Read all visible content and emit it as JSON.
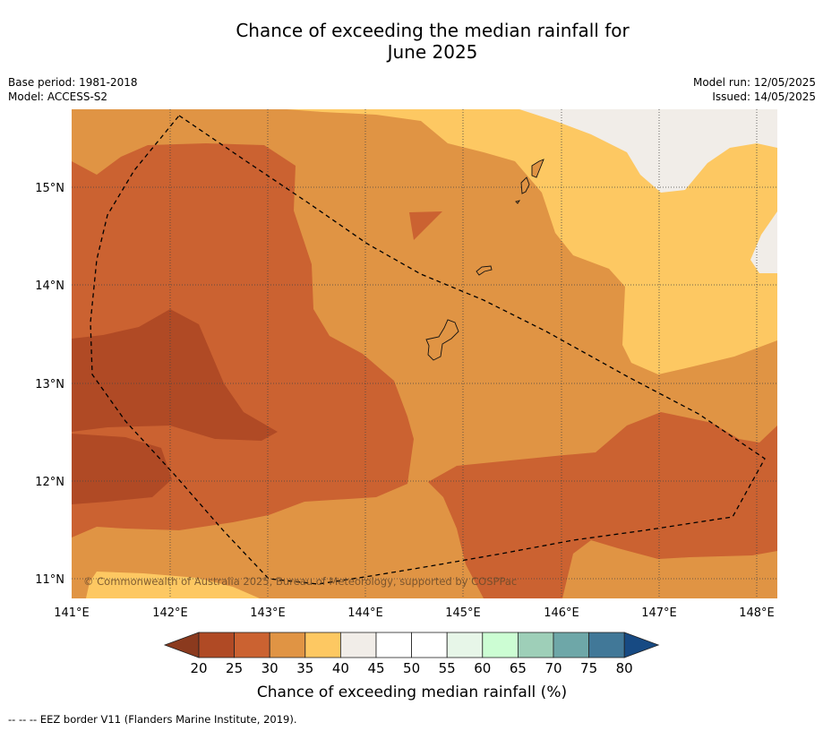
{
  "title": {
    "line1": "Chance of exceeding the median rainfall for",
    "line2": "June 2025"
  },
  "meta": {
    "base_period": "Base period: 1981-2018",
    "model": "Model: ACCESS-S2",
    "model_run": "Model run: 12/05/2025",
    "issued": "Issued: 14/05/2025"
  },
  "map": {
    "lat_labels": [
      "15°N",
      "14°N",
      "13°N",
      "12°N",
      "11°N"
    ],
    "lon_labels": [
      "141°E",
      "142°E",
      "143°E",
      "144°E",
      "145°E",
      "146°E",
      "147°E",
      "148°E"
    ],
    "copyright": "© Commonwealth of Australia 2025, Bureau of Meteorology, supported by COSPPac"
  },
  "colorbar": {
    "ticks": [
      "20",
      "25",
      "30",
      "35",
      "40",
      "45",
      "50",
      "55",
      "60",
      "65",
      "70",
      "75",
      "80"
    ],
    "label": "Chance of exceeding median rainfall (%)",
    "colors": {
      "lt20": "#8b3a1e",
      "c20_25": "#b04a25",
      "c25_30": "#cb6231",
      "c30_35": "#e09444",
      "c35_40": "#fdc862",
      "c40_45": "#f1ede8",
      "c45_50": "#ffffff",
      "c50_55": "#ffffff",
      "c55_60": "#e7f6e8",
      "c60_65": "#ccfdd3",
      "c65_70": "#9ecfb8",
      "c70_75": "#6ea7a8",
      "c75_80": "#417898",
      "gt80": "#174a83"
    }
  },
  "footer": "--  --  -- EEZ border V11 (Flanders Marine Institute, 2019)."
}
